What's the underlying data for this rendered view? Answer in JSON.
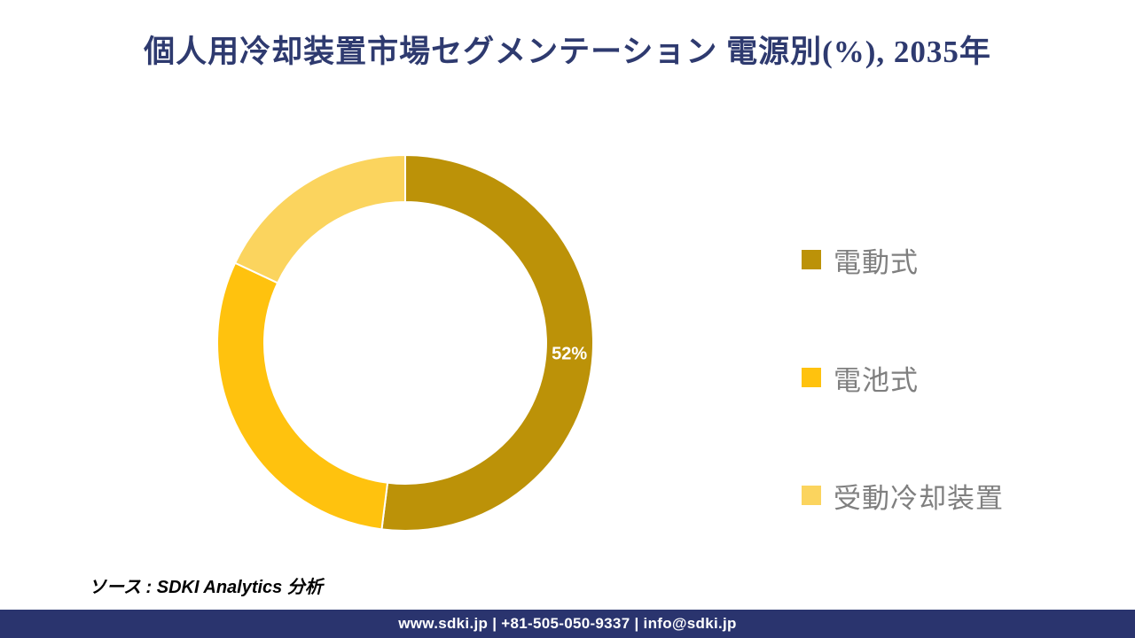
{
  "title": "個人用冷却装置市場セグメンテーション 電源別(%), 2035年",
  "chart_data": {
    "type": "pie",
    "subtype": "donut",
    "title": "個人用冷却装置市場セグメンテーション 電源別(%), 2035年",
    "unit": "%",
    "start_angle_deg": 0,
    "direction": "clockwise",
    "inner_radius_ratio": 0.75,
    "legend_position": "right",
    "segments": [
      {
        "label": "電動式",
        "value": 52,
        "color": "#BC9208",
        "data_label": "52%"
      },
      {
        "label": "電池式",
        "value": 30,
        "color": "#FFC20E",
        "data_label": ""
      },
      {
        "label": "受動冷却装置",
        "value": 18,
        "color": "#FBD45E",
        "data_label": ""
      }
    ]
  },
  "source": {
    "text": "ソース : SDKI Analytics 分析"
  },
  "footer": {
    "text": "www.sdki.jp | +81-505-050-9337 | info@sdki.jp",
    "background": "#2A346E",
    "text_color": "#FFFFFF"
  },
  "colors": {
    "title": "#2E3A6F",
    "legend_text": "#7F7F7F",
    "data_label_text": "#FFFFFF",
    "segment_separator": "#FFFFFF"
  }
}
